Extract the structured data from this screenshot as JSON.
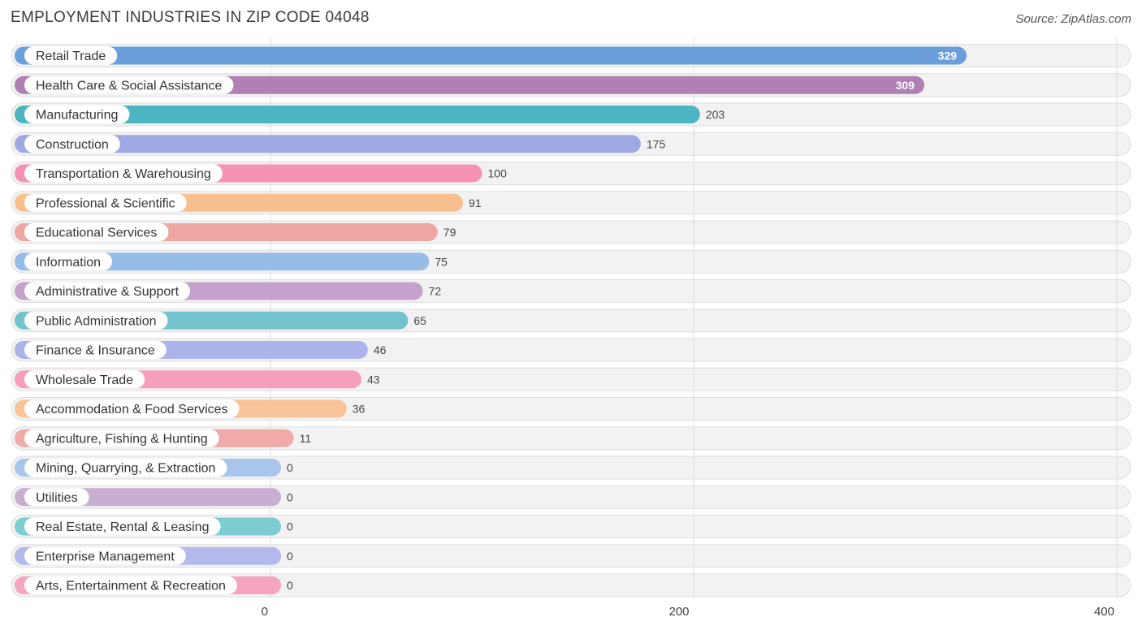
{
  "chart_data": {
    "type": "bar",
    "orientation": "horizontal",
    "title": "EMPLOYMENT INDUSTRIES IN ZIP CODE 04048",
    "source": "Source: ZipAtlas.com",
    "xlim": [
      0,
      400
    ],
    "ticks": [
      0,
      200,
      400
    ],
    "grid": true,
    "categories": [
      "Retail Trade",
      "Health Care & Social Assistance",
      "Manufacturing",
      "Construction",
      "Transportation & Warehousing",
      "Professional & Scientific",
      "Educational Services",
      "Information",
      "Administrative & Support",
      "Public Administration",
      "Finance & Insurance",
      "Wholesale Trade",
      "Accommodation & Food Services",
      "Agriculture, Fishing & Hunting",
      "Mining, Quarrying, & Extraction",
      "Utilities",
      "Real Estate, Rental & Leasing",
      "Enterprise Management",
      "Arts, Entertainment & Recreation"
    ],
    "values": [
      329,
      309,
      203,
      175,
      100,
      91,
      79,
      75,
      72,
      65,
      46,
      43,
      36,
      11,
      0,
      0,
      0,
      0,
      0
    ],
    "value_labels": [
      "329",
      "309",
      "203",
      "175",
      "100",
      "91",
      "79",
      "75",
      "72",
      "65",
      "46",
      "43",
      "36",
      "11",
      "0",
      "0",
      "0",
      "0",
      "0"
    ],
    "tick_labels": [
      "0",
      "200",
      "400"
    ],
    "colors": [
      "#6a9fdc",
      "#b07fb4",
      "#4db5c2",
      "#9ea8e3",
      "#f591b2",
      "#f8c08f",
      "#eea6a2",
      "#96bce8",
      "#c3a2cc",
      "#72c3cc",
      "#aab4ea",
      "#f59fbb",
      "#f8c398",
      "#f0aaa8",
      "#a8c6ec",
      "#c9aed4",
      "#7ecdd3",
      "#b3b9ea",
      "#f5a5c0"
    ]
  }
}
